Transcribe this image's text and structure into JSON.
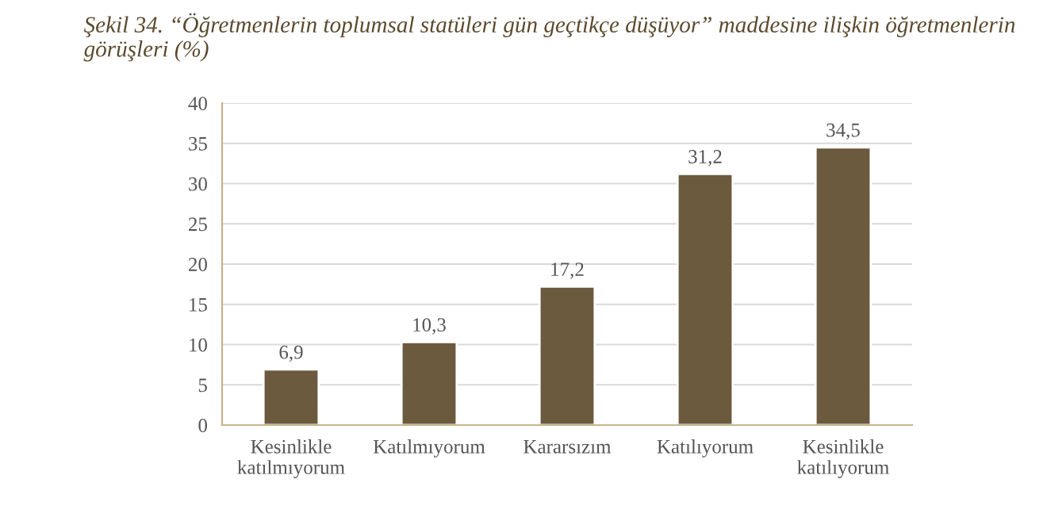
{
  "chart_data": {
    "type": "bar",
    "title": "Şekil 34. “Öğretmenlerin toplumsal statüleri gün geçtikçe düşüyor” maddesine ilişkin öğretmenlerin görüşleri (%)",
    "categories": [
      "Kesinlikle\nkatılmıyorum",
      "Katılmıyorum",
      "Kararsızım",
      "Katılıyorum",
      "Kesinlikle\nkatılıyorum"
    ],
    "values": [
      6.9,
      10.3,
      17.2,
      31.2,
      34.5
    ],
    "value_labels": [
      "6,9",
      "10,3",
      "17,2",
      "31,2",
      "34,5"
    ],
    "color": "#6b5a3e",
    "ylim": [
      0,
      40
    ],
    "yticks": [
      0,
      5,
      10,
      15,
      20,
      25,
      30,
      35,
      40
    ],
    "grid": "y",
    "legend": false
  }
}
